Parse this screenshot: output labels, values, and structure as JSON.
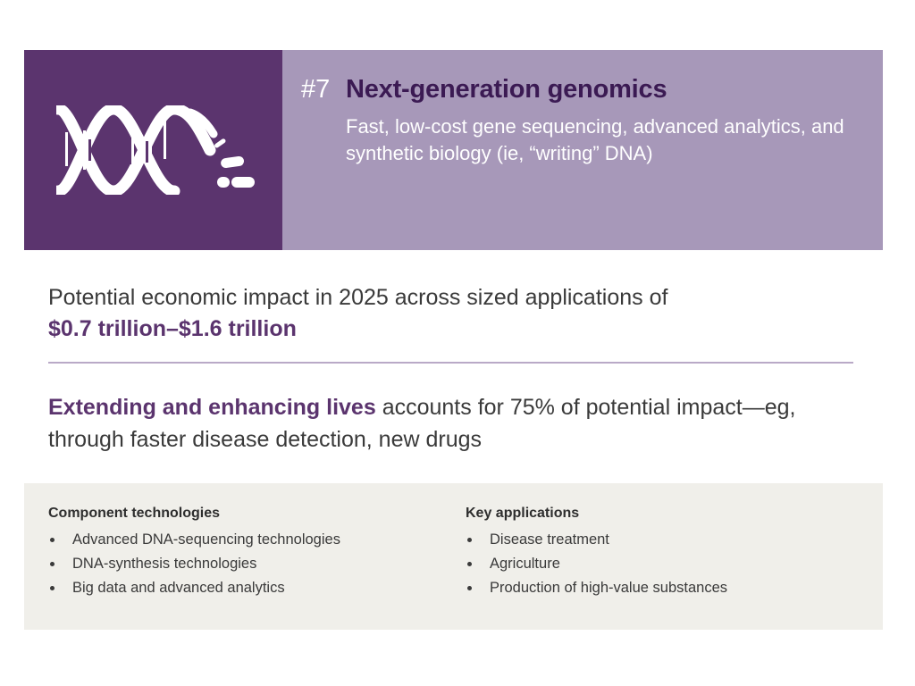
{
  "banner": {
    "number": "#7",
    "title": "Next-generation genomics",
    "subtitle": "Fast, low-cost gene sequencing, advanced analytics, and synthetic biology (ie, “writing” DNA)",
    "icon": "dna-icon"
  },
  "impact": {
    "text": "Potential economic impact in 2025 across sized applications of",
    "value": "$0.7 trillion–$1.6 trillion"
  },
  "lives": {
    "highlight": "Extending and enhancing lives",
    "text": " accounts for 75% of potential impact—eg, through faster disease detection, new drugs"
  },
  "component_technologies": {
    "heading": "Component technologies",
    "items": [
      "Advanced DNA-sequencing technologies",
      "DNA-synthesis technologies",
      "Big data and advanced analytics"
    ]
  },
  "key_applications": {
    "heading": "Key applications",
    "items": [
      "Disease treatment",
      "Agriculture",
      "Production of high-value substances"
    ]
  },
  "colors": {
    "dark_purple": "#5b346e",
    "light_purple": "#a798b9",
    "title_purple": "#3b1a53",
    "panel_bg": "#f0efea"
  }
}
